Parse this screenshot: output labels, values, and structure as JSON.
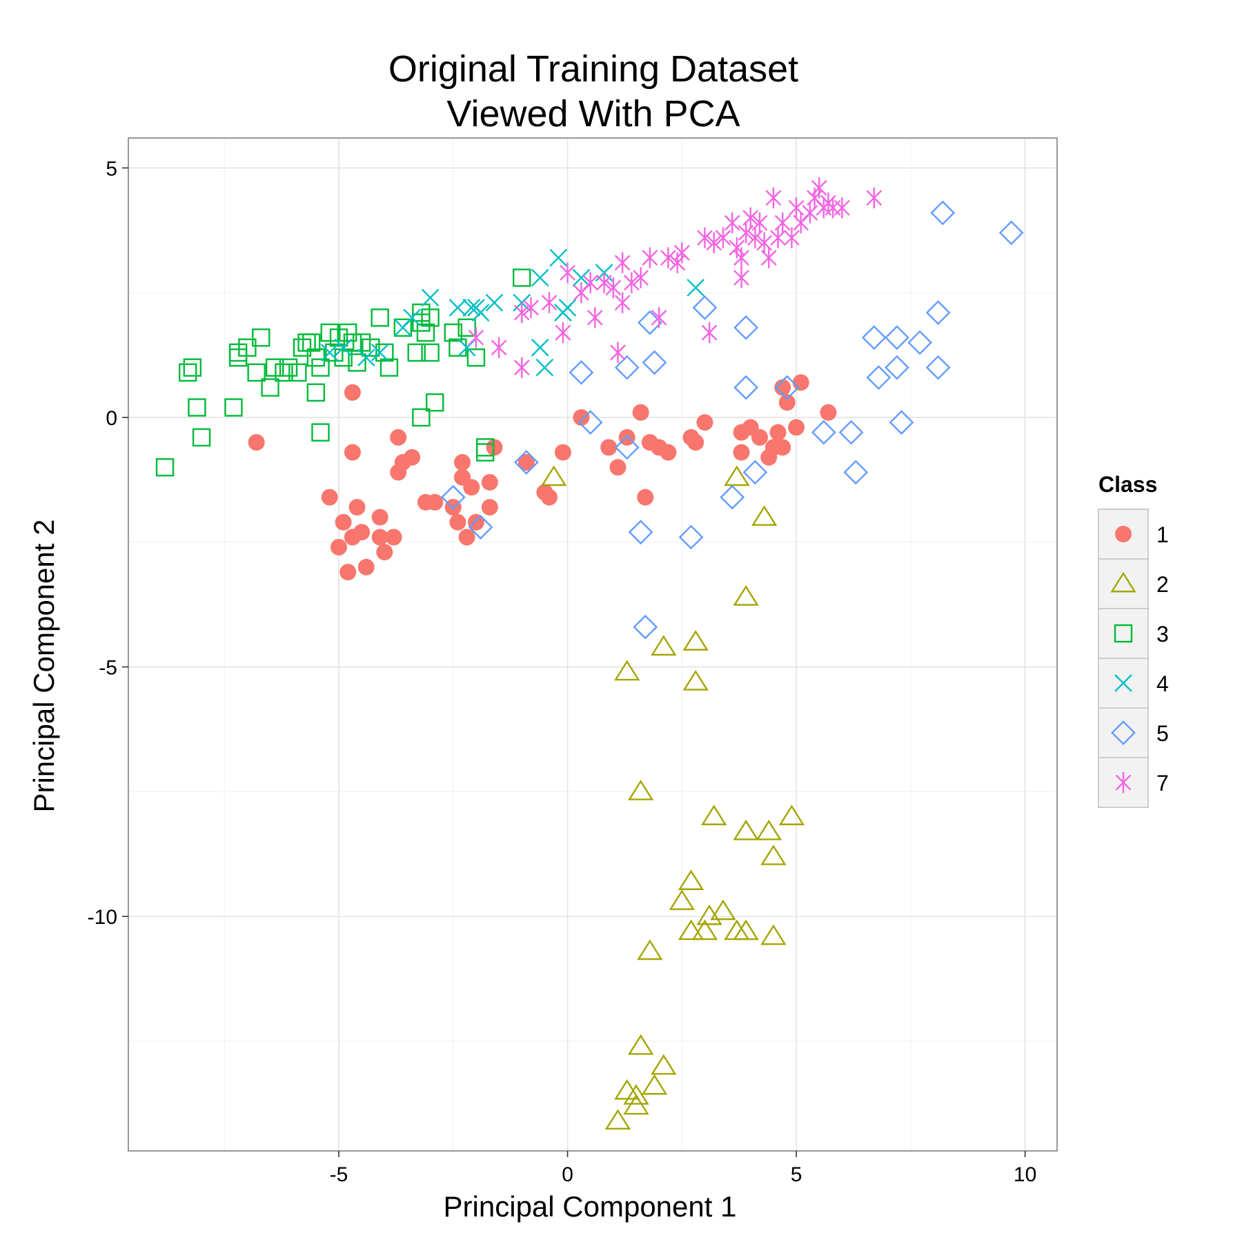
{
  "chart_data": {
    "type": "scatter",
    "title_lines": [
      "Original Training Dataset",
      "Viewed With PCA"
    ],
    "xlabel": "Principal Component 1",
    "ylabel": "Principal Component 2",
    "xlim": [
      -9.6,
      10.7
    ],
    "ylim": [
      -14.7,
      5.6
    ],
    "x_ticks": [
      -5,
      0,
      5,
      10
    ],
    "y_ticks": [
      5,
      0,
      -5,
      -10
    ],
    "x_tick_labels": [
      "-5",
      "0",
      "5",
      "10"
    ],
    "y_tick_labels": [
      "5",
      "0",
      "-5",
      "-10"
    ],
    "grid": true,
    "legend": {
      "title": "Class",
      "placement": "right"
    },
    "series": [
      {
        "name": "1",
        "shape": "filled-circle",
        "color": "#F8766D",
        "points": [
          [
            -6.8,
            -0.5
          ],
          [
            -4.7,
            0.5
          ],
          [
            -4.7,
            -0.7
          ],
          [
            -5.2,
            -1.6
          ],
          [
            -4.9,
            -2.1
          ],
          [
            -5.0,
            -2.6
          ],
          [
            -4.7,
            -2.4
          ],
          [
            -4.6,
            -1.8
          ],
          [
            -4.5,
            -2.3
          ],
          [
            -4.8,
            -3.1
          ],
          [
            -4.4,
            -3.0
          ],
          [
            -4.0,
            -2.7
          ],
          [
            -4.1,
            -2.4
          ],
          [
            -3.8,
            -2.4
          ],
          [
            -4.1,
            -2.0
          ],
          [
            -3.7,
            -1.1
          ],
          [
            -3.6,
            -0.9
          ],
          [
            -3.4,
            -0.8
          ],
          [
            -3.7,
            -0.4
          ],
          [
            -3.1,
            -1.7
          ],
          [
            -2.9,
            -1.7
          ],
          [
            -2.5,
            -1.8
          ],
          [
            -2.3,
            -0.9
          ],
          [
            -2.3,
            -1.2
          ],
          [
            -2.1,
            -1.4
          ],
          [
            -2.4,
            -2.1
          ],
          [
            -2.2,
            -2.4
          ],
          [
            -2.0,
            -2.1
          ],
          [
            -1.7,
            -1.3
          ],
          [
            -1.7,
            -1.8
          ],
          [
            -1.6,
            -0.6
          ],
          [
            -0.9,
            -0.9
          ],
          [
            -0.5,
            -1.5
          ],
          [
            -0.4,
            -1.6
          ],
          [
            -0.1,
            -0.7
          ],
          [
            0.3,
            0.0
          ],
          [
            0.9,
            -0.6
          ],
          [
            1.1,
            -1.0
          ],
          [
            1.3,
            -0.4
          ],
          [
            1.6,
            0.1
          ],
          [
            1.8,
            -0.5
          ],
          [
            2.0,
            -0.6
          ],
          [
            2.2,
            -0.7
          ],
          [
            1.7,
            -1.6
          ],
          [
            2.8,
            -0.5
          ],
          [
            2.7,
            -0.4
          ],
          [
            3.0,
            -0.1
          ],
          [
            3.8,
            -0.3
          ],
          [
            3.8,
            -0.7
          ],
          [
            4.0,
            -0.2
          ],
          [
            4.2,
            -0.4
          ],
          [
            4.4,
            -0.8
          ],
          [
            4.5,
            -0.6
          ],
          [
            4.6,
            -0.3
          ],
          [
            4.7,
            -0.6
          ],
          [
            4.8,
            0.3
          ],
          [
            4.7,
            0.6
          ],
          [
            5.0,
            -0.2
          ],
          [
            5.1,
            0.7
          ],
          [
            5.7,
            0.1
          ]
        ]
      },
      {
        "name": "2",
        "shape": "triangle",
        "color": "#A3A500",
        "points": [
          [
            -0.3,
            -1.2
          ],
          [
            3.7,
            -1.2
          ],
          [
            4.3,
            -2.0
          ],
          [
            3.9,
            -3.6
          ],
          [
            2.8,
            -4.5
          ],
          [
            2.1,
            -4.6
          ],
          [
            1.3,
            -5.1
          ],
          [
            2.8,
            -5.3
          ],
          [
            1.6,
            -7.5
          ],
          [
            3.2,
            -8.0
          ],
          [
            3.9,
            -8.3
          ],
          [
            4.4,
            -8.3
          ],
          [
            4.9,
            -8.0
          ],
          [
            4.5,
            -8.8
          ],
          [
            2.7,
            -9.3
          ],
          [
            2.5,
            -9.7
          ],
          [
            3.1,
            -10.0
          ],
          [
            3.4,
            -9.9
          ],
          [
            2.7,
            -10.3
          ],
          [
            3.0,
            -10.3
          ],
          [
            3.7,
            -10.3
          ],
          [
            3.9,
            -10.3
          ],
          [
            4.5,
            -10.4
          ],
          [
            1.8,
            -10.7
          ],
          [
            1.6,
            -12.6
          ],
          [
            2.1,
            -13.0
          ],
          [
            1.9,
            -13.4
          ],
          [
            1.3,
            -13.5
          ],
          [
            1.5,
            -13.6
          ],
          [
            1.5,
            -13.8
          ],
          [
            1.1,
            -14.1
          ]
        ]
      },
      {
        "name": "3",
        "shape": "square",
        "color": "#00BA38",
        "points": [
          [
            -8.8,
            -1.0
          ],
          [
            -8.3,
            0.9
          ],
          [
            -8.2,
            1.0
          ],
          [
            -8.1,
            0.2
          ],
          [
            -8.0,
            -0.4
          ],
          [
            -7.3,
            0.2
          ],
          [
            -7.2,
            1.3
          ],
          [
            -7.2,
            1.2
          ],
          [
            -7.0,
            1.4
          ],
          [
            -6.8,
            0.9
          ],
          [
            -6.7,
            1.6
          ],
          [
            -6.5,
            0.6
          ],
          [
            -6.4,
            1.0
          ],
          [
            -6.2,
            0.9
          ],
          [
            -6.1,
            1.0
          ],
          [
            -5.9,
            0.9
          ],
          [
            -5.8,
            1.4
          ],
          [
            -5.7,
            1.5
          ],
          [
            -5.6,
            1.5
          ],
          [
            -5.5,
            1.2
          ],
          [
            -5.5,
            0.5
          ],
          [
            -5.4,
            -0.3
          ],
          [
            -5.4,
            1.0
          ],
          [
            -5.2,
            1.7
          ],
          [
            -5.1,
            1.3
          ],
          [
            -5.0,
            1.6
          ],
          [
            -4.9,
            1.2
          ],
          [
            -4.8,
            1.7
          ],
          [
            -4.7,
            1.5
          ],
          [
            -4.6,
            1.1
          ],
          [
            -4.5,
            1.5
          ],
          [
            -4.3,
            1.4
          ],
          [
            -4.1,
            2.0
          ],
          [
            -4.0,
            1.3
          ],
          [
            -3.9,
            1.0
          ],
          [
            -3.6,
            1.8
          ],
          [
            -3.3,
            1.3
          ],
          [
            -3.2,
            1.9
          ],
          [
            -3.2,
            2.1
          ],
          [
            -3.0,
            2.0
          ],
          [
            -3.0,
            1.3
          ],
          [
            -3.1,
            1.7
          ],
          [
            -2.9,
            0.3
          ],
          [
            -3.2,
            0.0
          ],
          [
            -2.5,
            1.7
          ],
          [
            -2.4,
            1.4
          ],
          [
            -2.2,
            1.8
          ],
          [
            -2.0,
            1.2
          ],
          [
            -1.8,
            -0.6
          ],
          [
            -1.8,
            -0.7
          ],
          [
            -1.0,
            2.8
          ]
        ]
      },
      {
        "name": "4",
        "shape": "x",
        "color": "#00BFC4",
        "points": [
          [
            -5.2,
            1.3
          ],
          [
            -4.9,
            1.4
          ],
          [
            -4.4,
            1.2
          ],
          [
            -4.1,
            1.3
          ],
          [
            -3.6,
            1.8
          ],
          [
            -3.4,
            2.0
          ],
          [
            -3.0,
            2.4
          ],
          [
            -2.4,
            2.2
          ],
          [
            -2.2,
            1.4
          ],
          [
            -2.1,
            2.2
          ],
          [
            -2.0,
            2.2
          ],
          [
            -1.9,
            2.1
          ],
          [
            -1.6,
            2.3
          ],
          [
            -1.0,
            2.3
          ],
          [
            -0.6,
            2.8
          ],
          [
            -0.6,
            1.4
          ],
          [
            -0.5,
            1.0
          ],
          [
            -0.2,
            3.2
          ],
          [
            -0.1,
            2.1
          ],
          [
            0.0,
            2.2
          ],
          [
            0.3,
            2.8
          ],
          [
            0.8,
            2.9
          ],
          [
            2.8,
            2.6
          ]
        ]
      },
      {
        "name": "5",
        "shape": "diamond",
        "color": "#619CFF",
        "points": [
          [
            -2.5,
            -1.6
          ],
          [
            -1.9,
            -2.2
          ],
          [
            -0.9,
            -0.9
          ],
          [
            0.3,
            0.9
          ],
          [
            0.5,
            -0.1
          ],
          [
            1.3,
            1.0
          ],
          [
            1.3,
            -0.6
          ],
          [
            1.8,
            1.9
          ],
          [
            1.9,
            1.1
          ],
          [
            1.6,
            -2.3
          ],
          [
            1.7,
            -4.2
          ],
          [
            2.7,
            -2.4
          ],
          [
            3.0,
            2.2
          ],
          [
            3.6,
            -1.6
          ],
          [
            3.9,
            1.8
          ],
          [
            3.9,
            0.6
          ],
          [
            4.1,
            -1.1
          ],
          [
            4.8,
            0.6
          ],
          [
            5.6,
            -0.3
          ],
          [
            6.2,
            -0.3
          ],
          [
            6.3,
            -1.1
          ],
          [
            6.7,
            1.6
          ],
          [
            6.8,
            0.8
          ],
          [
            7.2,
            1.6
          ],
          [
            7.2,
            1.0
          ],
          [
            7.3,
            -0.1
          ],
          [
            7.7,
            1.5
          ],
          [
            8.1,
            2.1
          ],
          [
            8.1,
            1.0
          ],
          [
            8.2,
            4.1
          ],
          [
            9.7,
            3.7
          ]
        ]
      },
      {
        "name": "7",
        "shape": "asterisk",
        "color": "#F564E3",
        "points": [
          [
            -2.0,
            1.6
          ],
          [
            -1.5,
            1.4
          ],
          [
            -1.0,
            1.0
          ],
          [
            -1.0,
            2.1
          ],
          [
            -0.8,
            2.2
          ],
          [
            -0.4,
            2.3
          ],
          [
            -0.1,
            1.7
          ],
          [
            0.0,
            2.9
          ],
          [
            0.3,
            2.5
          ],
          [
            0.5,
            2.7
          ],
          [
            0.6,
            2.0
          ],
          [
            0.8,
            2.7
          ],
          [
            1.0,
            2.6
          ],
          [
            1.1,
            1.3
          ],
          [
            1.2,
            2.3
          ],
          [
            1.2,
            3.1
          ],
          [
            1.4,
            2.7
          ],
          [
            1.6,
            2.8
          ],
          [
            1.8,
            3.2
          ],
          [
            2.0,
            2.0
          ],
          [
            2.2,
            3.2
          ],
          [
            2.4,
            3.1
          ],
          [
            2.5,
            3.3
          ],
          [
            3.0,
            3.6
          ],
          [
            3.1,
            1.7
          ],
          [
            3.2,
            3.5
          ],
          [
            3.4,
            3.6
          ],
          [
            3.6,
            3.9
          ],
          [
            3.7,
            3.4
          ],
          [
            3.8,
            3.2
          ],
          [
            3.8,
            2.8
          ],
          [
            3.9,
            3.7
          ],
          [
            4.0,
            4.0
          ],
          [
            4.1,
            3.6
          ],
          [
            4.2,
            3.9
          ],
          [
            4.3,
            3.5
          ],
          [
            4.4,
            3.2
          ],
          [
            4.5,
            4.4
          ],
          [
            4.6,
            3.6
          ],
          [
            4.7,
            3.9
          ],
          [
            4.9,
            3.6
          ],
          [
            5.0,
            4.2
          ],
          [
            5.1,
            3.9
          ],
          [
            5.3,
            4.1
          ],
          [
            5.4,
            4.4
          ],
          [
            5.5,
            4.6
          ],
          [
            5.6,
            4.2
          ],
          [
            5.7,
            4.3
          ],
          [
            5.8,
            4.2
          ],
          [
            6.0,
            4.2
          ],
          [
            6.7,
            4.4
          ]
        ]
      }
    ]
  }
}
